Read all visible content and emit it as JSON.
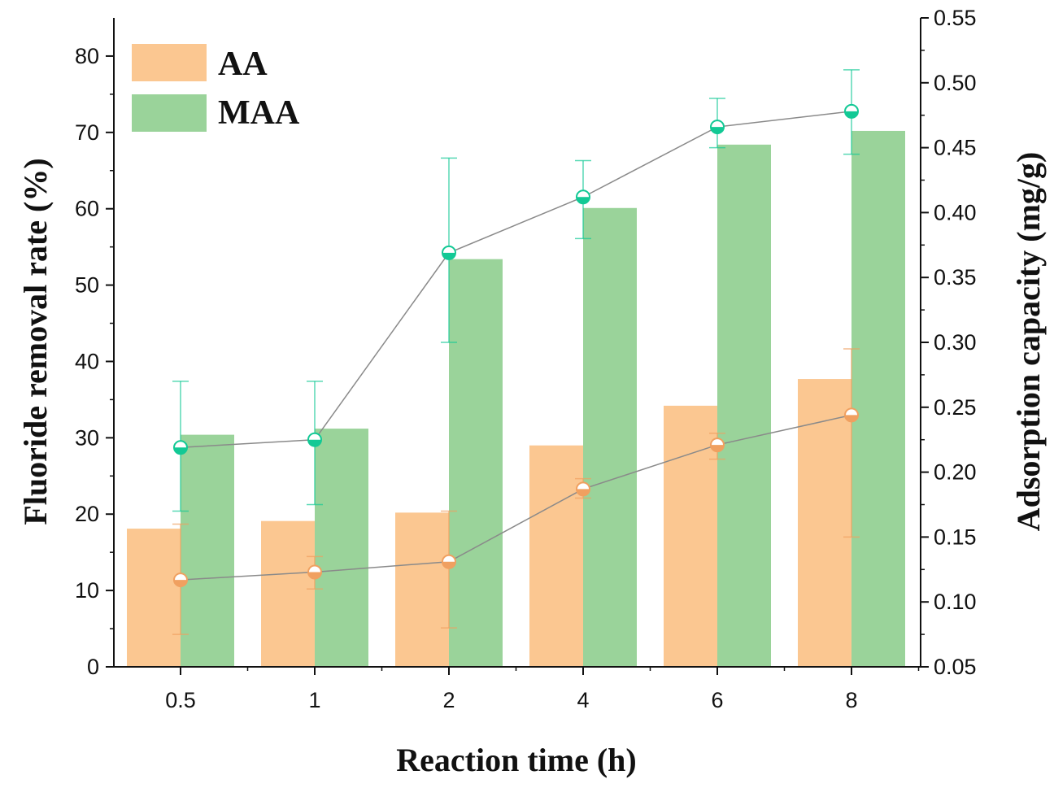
{
  "chart_data": {
    "type": "bar",
    "categories": [
      "0.5",
      "1",
      "2",
      "4",
      "6",
      "8"
    ],
    "xlabel": "Reaction time (h)",
    "ylabel": "Fluoride removal rate (%)",
    "y2label": "Adsorption capacity (mg/g)",
    "ylim": [
      0,
      85
    ],
    "y2lim": [
      0.05,
      0.55
    ],
    "yticks": [
      "0",
      "10",
      "20",
      "30",
      "40",
      "50",
      "60",
      "70",
      "80"
    ],
    "y2ticks": [
      "0.05",
      "0.10",
      "0.15",
      "0.20",
      "0.25",
      "0.30",
      "0.35",
      "0.40",
      "0.45",
      "0.50",
      "0.55"
    ],
    "legend_position": "top-left",
    "series": [
      {
        "name": "AA",
        "kind": "bar",
        "color": "#fbc791",
        "values": [
          18.1,
          19.1,
          20.2,
          29.0,
          34.2,
          37.7
        ]
      },
      {
        "name": "MAA",
        "kind": "bar",
        "color": "#9ad39a",
        "values": [
          30.4,
          31.2,
          53.4,
          60.1,
          68.4,
          70.2
        ]
      },
      {
        "name": "AA adsorption capacity",
        "kind": "line",
        "axis": "right",
        "color": "#f0a060",
        "values": [
          0.117,
          0.123,
          0.131,
          0.187,
          0.221,
          0.244
        ],
        "err_low": [
          0.075,
          0.11,
          0.08,
          0.18,
          0.21,
          0.15
        ],
        "err_high": [
          0.16,
          0.135,
          0.17,
          0.195,
          0.23,
          0.295
        ]
      },
      {
        "name": "MAA adsorption capacity",
        "kind": "line",
        "axis": "right",
        "color": "#12c995",
        "values": [
          0.219,
          0.225,
          0.369,
          0.412,
          0.466,
          0.478
        ],
        "err_low": [
          0.17,
          0.175,
          0.3,
          0.38,
          0.45,
          0.445
        ],
        "err_high": [
          0.27,
          0.27,
          0.442,
          0.44,
          0.488,
          0.51
        ]
      }
    ]
  }
}
